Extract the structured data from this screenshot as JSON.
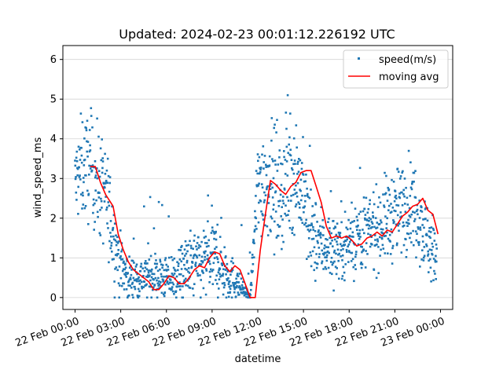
{
  "chart_data": {
    "type": "scatter",
    "title": "Updated: 2024-02-23 00:01:12.226192 UTC",
    "xlabel": "datetime",
    "ylabel": "wind_speed_ms",
    "xlim": [
      "2024-02-21 23:12",
      "2024-02-23 00:48"
    ],
    "ylim": [
      -0.3,
      6.35
    ],
    "x_ticks": [
      "22 Feb 00:00",
      "22 Feb 03:00",
      "22 Feb 06:00",
      "22 Feb 09:00",
      "22 Feb 12:00",
      "22 Feb 15:00",
      "22 Feb 18:00",
      "22 Feb 21:00",
      "23 Feb 00:00"
    ],
    "y_ticks": [
      0,
      1,
      2,
      3,
      4,
      5,
      6
    ],
    "grid": "horizontal",
    "legend_position": "top-right",
    "colors": {
      "scatter": "#1f77b4",
      "moving_avg": "#ff0000",
      "grid": "#d3d3d3"
    },
    "series": [
      {
        "name": "speed(m/s)",
        "kind": "scatter",
        "sample_every_minutes": 1,
        "envelope": {
          "x": [
            "2024-02-22 00:00",
            "2024-02-22 00:30",
            "2024-02-22 01:00",
            "2024-02-22 01:30",
            "2024-02-22 02:00",
            "2024-02-22 02:30",
            "2024-02-22 03:00",
            "2024-02-22 03:30",
            "2024-02-22 04:00",
            "2024-02-22 04:30",
            "2024-02-22 05:00",
            "2024-02-22 05:30",
            "2024-02-22 06:00",
            "2024-02-22 06:30",
            "2024-02-22 07:00",
            "2024-02-22 07:30",
            "2024-02-22 08:00",
            "2024-02-22 08:30",
            "2024-02-22 09:00",
            "2024-02-22 09:30",
            "2024-02-22 10:00",
            "2024-02-22 10:30",
            "2024-02-22 11:00",
            "2024-02-22 11:30",
            "2024-02-22 12:00",
            "2024-02-22 12:30",
            "2024-02-22 13:00",
            "2024-02-22 13:30",
            "2024-02-22 14:00",
            "2024-02-22 14:30",
            "2024-02-22 15:00",
            "2024-02-22 15:30",
            "2024-02-22 16:00",
            "2024-02-22 16:30",
            "2024-02-22 17:00",
            "2024-02-22 17:30",
            "2024-02-22 18:00",
            "2024-02-22 18:30",
            "2024-02-22 19:00",
            "2024-02-22 19:30",
            "2024-02-22 20:00",
            "2024-02-22 20:30",
            "2024-02-22 21:00",
            "2024-02-22 21:30",
            "2024-02-22 22:00",
            "2024-02-22 22:30",
            "2024-02-22 23:00",
            "2024-02-22 23:45"
          ],
          "mean": [
            2.9,
            3.3,
            3.3,
            2.9,
            2.6,
            1.6,
            0.8,
            0.5,
            0.5,
            0.5,
            0.6,
            0.5,
            0.5,
            0.5,
            0.6,
            0.8,
            0.8,
            0.9,
            1.0,
            0.9,
            0.6,
            0.4,
            0.2,
            0.0,
            2.8,
            3.0,
            2.9,
            2.6,
            2.9,
            3.2,
            2.5,
            1.5,
            1.4,
            1.3,
            1.3,
            1.3,
            1.4,
            1.6,
            1.6,
            1.7,
            1.8,
            2.0,
            2.1,
            2.3,
            2.4,
            2.2,
            1.6,
            1.0
          ],
          "spread": [
            1.0,
            1.2,
            1.2,
            1.2,
            1.2,
            1.0,
            0.7,
            0.5,
            0.5,
            0.5,
            0.6,
            0.5,
            0.5,
            0.6,
            0.7,
            0.8,
            0.8,
            0.9,
            0.9,
            0.9,
            0.7,
            0.4,
            0.2,
            0.05,
            1.2,
            1.3,
            1.3,
            1.3,
            1.3,
            1.3,
            1.2,
            1.0,
            0.9,
            0.8,
            0.8,
            0.8,
            0.8,
            0.9,
            0.9,
            0.9,
            0.9,
            1.0,
            1.0,
            1.0,
            1.1,
            1.0,
            0.9,
            0.8
          ]
        }
      },
      {
        "name": "moving avg",
        "kind": "line",
        "x": [
          "2024-02-22 01:00",
          "2024-02-22 01:20",
          "2024-02-22 01:40",
          "2024-02-22 02:00",
          "2024-02-22 02:20",
          "2024-02-22 02:30",
          "2024-02-22 02:50",
          "2024-02-22 03:10",
          "2024-02-22 03:30",
          "2024-02-22 03:50",
          "2024-02-22 04:10",
          "2024-02-22 04:30",
          "2024-02-22 04:50",
          "2024-02-22 05:10",
          "2024-02-22 05:30",
          "2024-02-22 05:50",
          "2024-02-22 06:10",
          "2024-02-22 06:30",
          "2024-02-22 06:50",
          "2024-02-22 07:10",
          "2024-02-22 07:30",
          "2024-02-22 07:50",
          "2024-02-22 08:10",
          "2024-02-22 08:30",
          "2024-02-22 08:50",
          "2024-02-22 09:10",
          "2024-02-22 09:30",
          "2024-02-22 09:50",
          "2024-02-22 10:10",
          "2024-02-22 10:30",
          "2024-02-22 10:50",
          "2024-02-22 11:10",
          "2024-02-22 11:30",
          "2024-02-22 11:50",
          "2024-02-22 12:10",
          "2024-02-22 12:30",
          "2024-02-22 12:50",
          "2024-02-22 13:10",
          "2024-02-22 13:30",
          "2024-02-22 13:50",
          "2024-02-22 14:10",
          "2024-02-22 14:30",
          "2024-02-22 14:50",
          "2024-02-22 15:10",
          "2024-02-22 15:30",
          "2024-02-22 15:50",
          "2024-02-22 16:10",
          "2024-02-22 16:30",
          "2024-02-22 16:50",
          "2024-02-22 17:10",
          "2024-02-22 17:30",
          "2024-02-22 17:50",
          "2024-02-22 18:10",
          "2024-02-22 18:30",
          "2024-02-22 18:50",
          "2024-02-22 19:10",
          "2024-02-22 19:30",
          "2024-02-22 19:50",
          "2024-02-22 20:10",
          "2024-02-22 20:30",
          "2024-02-22 20:50",
          "2024-02-22 21:10",
          "2024-02-22 21:30",
          "2024-02-22 21:50",
          "2024-02-22 22:10",
          "2024-02-22 22:30",
          "2024-02-22 22:50",
          "2024-02-22 23:10",
          "2024-02-22 23:30",
          "2024-02-22 23:50"
        ],
        "y": [
          3.3,
          3.3,
          2.9,
          2.6,
          2.4,
          2.3,
          1.6,
          1.2,
          0.9,
          0.7,
          0.6,
          0.5,
          0.4,
          0.2,
          0.2,
          0.35,
          0.55,
          0.5,
          0.35,
          0.35,
          0.5,
          0.7,
          0.8,
          0.75,
          1.0,
          1.15,
          1.1,
          0.8,
          0.65,
          0.8,
          0.7,
          0.35,
          0.0,
          0.0,
          1.2,
          2.1,
          2.95,
          2.85,
          2.7,
          2.6,
          2.8,
          2.9,
          3.15,
          3.2,
          3.2,
          2.8,
          2.4,
          1.8,
          1.5,
          1.55,
          1.5,
          1.55,
          1.45,
          1.3,
          1.35,
          1.5,
          1.55,
          1.65,
          1.55,
          1.7,
          1.65,
          1.85,
          2.05,
          2.15,
          2.3,
          2.35,
          2.5,
          2.2,
          2.1,
          1.6
        ]
      }
    ]
  }
}
